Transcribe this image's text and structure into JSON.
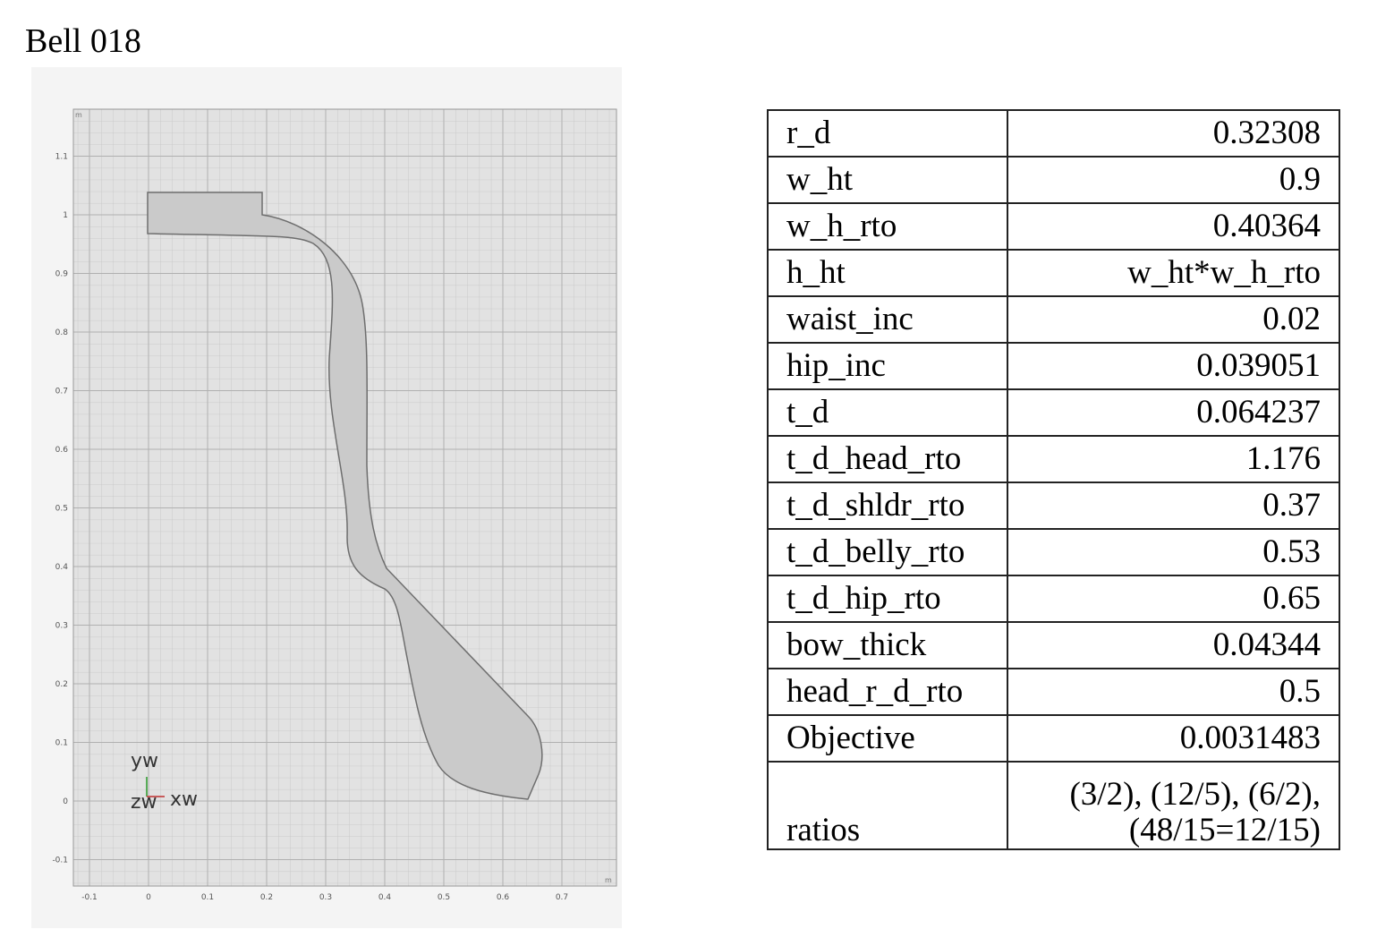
{
  "title": "Bell 018",
  "plot": {
    "x_ticks": [
      "-0.1",
      "0",
      "0.1",
      "0.2",
      "0.3",
      "0.4",
      "0.5",
      "0.6",
      "0.7"
    ],
    "y_ticks": [
      "-0.1",
      "0",
      "0.1",
      "0.2",
      "0.3",
      "0.4",
      "0.5",
      "0.6",
      "0.7",
      "0.8",
      "0.9",
      "1",
      "1.1"
    ],
    "unit": "m",
    "axis_labels": {
      "y": "yw",
      "z": "zw",
      "x": "xw"
    }
  },
  "table": {
    "rows": [
      [
        "r_d",
        "0.32308"
      ],
      [
        "w_ht",
        "0.9"
      ],
      [
        "w_h_rto",
        "0.40364"
      ],
      [
        "h_ht",
        "w_ht*w_h_rto"
      ],
      [
        "waist_inc",
        "0.02"
      ],
      [
        "hip_inc",
        "0.039051"
      ],
      [
        "t_d",
        "0.064237"
      ],
      [
        "t_d_head_rto",
        "1.176"
      ],
      [
        "t_d_shldr_rto",
        "0.37"
      ],
      [
        "t_d_belly_rto",
        "0.53"
      ],
      [
        "t_d_hip_rto",
        "0.65"
      ],
      [
        "bow_thick",
        "0.04344"
      ],
      [
        "head_r_d_rto",
        "0.5"
      ],
      [
        "Objective",
        "0.0031483"
      ],
      [
        "ratios",
        [
          "(3/2), (12/5), (6/2),",
          "(48/15=12/15)"
        ]
      ]
    ]
  }
}
